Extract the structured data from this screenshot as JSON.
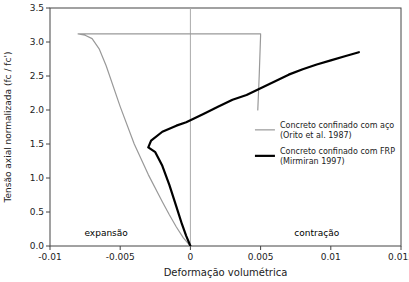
{
  "chart_data": {
    "type": "line",
    "title": "",
    "xlabel": "Deformação volumétrica",
    "ylabel": "Tensão axial normalizada (fc / fc')",
    "xlim": [
      -0.01,
      0.015
    ],
    "ylim": [
      0.0,
      3.5
    ],
    "xticks": [
      -0.01,
      -0.005,
      0,
      0.005,
      0.01,
      0.015
    ],
    "yticks": [
      {
        "value": 0.0,
        "label": "0.0"
      },
      0.5,
      {
        "value": 1.0,
        "label": "1.0"
      },
      1.5,
      {
        "value": 2.0,
        "label": "2.0"
      },
      2.5,
      {
        "value": 3.0,
        "label": "3.0"
      },
      3.5
    ],
    "legend": "right",
    "series": [
      {
        "name": "Concreto confinado com aço\n(Orito et al. 1987)",
        "color": "#999999",
        "x": [
          0.0,
          -0.0005,
          -0.001,
          -0.0015,
          -0.002,
          -0.003,
          -0.004,
          -0.005,
          -0.006,
          -0.0065,
          -0.007,
          -0.0075,
          -0.008,
          null,
          -0.008,
          -0.0079,
          -0.0078,
          -0.0076,
          -0.007,
          -0.006,
          -0.005,
          -0.004,
          -0.003,
          -0.002,
          -0.001,
          0.0,
          0.001,
          0.002,
          0.003,
          0.004,
          0.005,
          0.005,
          0.0049,
          0.0048
        ],
        "values": [
          0.0,
          0.12,
          0.28,
          0.46,
          0.65,
          1.05,
          1.5,
          2.05,
          2.65,
          2.9,
          3.05,
          3.1,
          3.12,
          null,
          3.12,
          3.12,
          3.12,
          3.12,
          3.12,
          3.12,
          3.12,
          3.12,
          3.12,
          3.12,
          3.12,
          3.12,
          3.12,
          3.12,
          3.12,
          3.12,
          3.12,
          3.1,
          2.5,
          2.0
        ]
      },
      {
        "name": "Concreto confinado com FRP\n(Mirmiran 1997)",
        "color": "#000000",
        "x": [
          0.0,
          -0.0003,
          -0.0006,
          -0.001,
          -0.0015,
          -0.002,
          -0.0025,
          -0.003,
          -0.0028,
          -0.002,
          -0.001,
          -0.0003,
          0.0,
          0.001,
          0.002,
          0.003,
          0.004,
          0.005,
          0.006,
          0.007,
          0.008,
          0.009,
          0.01,
          0.011,
          0.012
        ],
        "values": [
          0.0,
          0.15,
          0.32,
          0.58,
          0.9,
          1.18,
          1.38,
          1.45,
          1.55,
          1.68,
          1.77,
          1.82,
          1.85,
          1.95,
          2.05,
          2.15,
          2.22,
          2.32,
          2.42,
          2.52,
          2.6,
          2.67,
          2.73,
          2.79,
          2.85
        ]
      }
    ],
    "vline": {
      "x": 0,
      "color": "#aaaaaa"
    },
    "annotations": [
      {
        "text": "expansão",
        "x": -0.006,
        "y": 0.1
      },
      {
        "text": "contração",
        "x": 0.009,
        "y": 0.1
      }
    ]
  }
}
